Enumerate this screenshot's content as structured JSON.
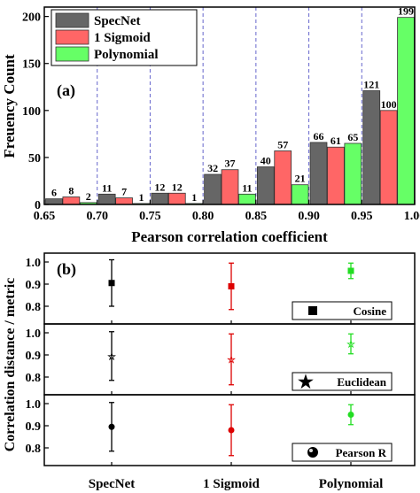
{
  "chart_data": [
    {
      "type": "bar",
      "panel_label": "(a)",
      "categories": [
        "0.65-0.70",
        "0.70-0.75",
        "0.75-0.80",
        "0.80-0.85",
        "0.85-0.90",
        "0.90-0.95",
        "0.95-1.00"
      ],
      "x_ticks": [
        "0.65",
        "0.70",
        "0.75",
        "0.80",
        "0.85",
        "0.90",
        "0.95",
        "1.00"
      ],
      "y_ticks": [
        "0",
        "50",
        "100",
        "150",
        "200"
      ],
      "xlabel": "Pearson correlation coefficient",
      "ylabel": "Freuency Count",
      "ylim": [
        0,
        210
      ],
      "xlim": [
        0.65,
        1.0
      ],
      "grid": "vertical dashed",
      "legend_position": "top-left",
      "series": [
        {
          "name": "SpecNet",
          "color": "#666666",
          "values": [
            6,
            11,
            12,
            32,
            40,
            66,
            121
          ],
          "labels": [
            "6",
            "11",
            "12",
            "32",
            "40",
            "66",
            "121"
          ]
        },
        {
          "name": "1 Sigmoid",
          "color": "#ff6666",
          "values": [
            8,
            7,
            12,
            37,
            57,
            61,
            100
          ],
          "labels": [
            "8",
            "7",
            "12",
            "37",
            "57",
            "61",
            "100"
          ]
        },
        {
          "name": "Polynomial",
          "color": "#66ff66",
          "values": [
            2,
            1,
            1,
            11,
            21,
            65,
            199
          ],
          "labels": [
            "2",
            "1",
            "1",
            "11",
            "21",
            "65",
            "199"
          ]
        }
      ]
    },
    {
      "type": "errorbar",
      "panel_label": "(b)",
      "categories": [
        "SpecNet",
        "1 Sigmoid",
        "Polynomial"
      ],
      "ylabel": "Correlation distance / metric",
      "y_ticks": [
        "0.8",
        "0.9",
        "1.0"
      ],
      "ylim": [
        0.72,
        1.04
      ],
      "colors": [
        "#000000",
        "#dd0000",
        "#22dd22"
      ],
      "panels": [
        {
          "legend": "Cosine",
          "marker": "square",
          "means": [
            0.905,
            0.89,
            0.96
          ],
          "errors": [
            0.105,
            0.105,
            0.035
          ]
        },
        {
          "legend": "Euclidean",
          "marker": "star",
          "means": [
            0.895,
            0.88,
            0.95
          ],
          "errors": [
            0.11,
            0.115,
            0.045
          ]
        },
        {
          "legend": "Pearson R",
          "marker": "circle",
          "means": [
            0.895,
            0.88,
            0.95
          ],
          "errors": [
            0.11,
            0.115,
            0.045
          ]
        }
      ]
    }
  ]
}
